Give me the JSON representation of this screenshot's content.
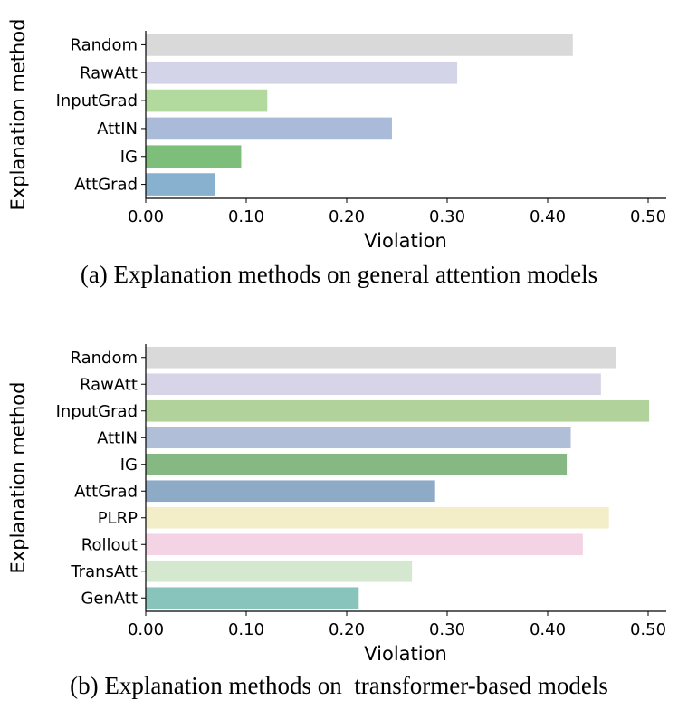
{
  "chart_data": [
    {
      "type": "bar",
      "orientation": "horizontal",
      "title": "",
      "caption": "(a) Explanation methods on general attention models",
      "xlabel": "Violation",
      "ylabel": "Explanation method",
      "xlim": [
        0,
        0.52
      ],
      "xticks": [
        "0.00",
        "0.10",
        "0.20",
        "0.30",
        "0.40",
        "0.50"
      ],
      "categories": [
        "Random",
        "RawAtt",
        "InputGrad",
        "AttIN",
        "IG",
        "AttGrad"
      ],
      "values": [
        0.425,
        0.31,
        0.121,
        0.245,
        0.095,
        0.069
      ],
      "colors": [
        "#d9d9d9",
        "#d4d4e8",
        "#b3da9e",
        "#aabbd9",
        "#7dbf7a",
        "#88b0cf"
      ]
    },
    {
      "type": "bar",
      "orientation": "horizontal",
      "title": "",
      "caption": "(b) Explanation methods on  transformer-based models",
      "xlabel": "Violation",
      "ylabel": "Explanation method",
      "xlim": [
        0,
        0.52
      ],
      "xticks": [
        "0.00",
        "0.10",
        "0.20",
        "0.30",
        "0.40",
        "0.50"
      ],
      "categories": [
        "Random",
        "RawAtt",
        "InputGrad",
        "AttIN",
        "IG",
        "AttGrad",
        "PLRP",
        "Rollout",
        "TransAtt",
        "GenAtt"
      ],
      "values": [
        0.468,
        0.453,
        0.501,
        0.423,
        0.419,
        0.288,
        0.461,
        0.435,
        0.265,
        0.212
      ],
      "colors": [
        "#d9d9d9",
        "#d6d4e6",
        "#b2d29c",
        "#b0bed8",
        "#86b883",
        "#8daac7",
        "#f3eec8",
        "#f3d3e4",
        "#d4e7cf",
        "#88c4bb"
      ]
    }
  ]
}
